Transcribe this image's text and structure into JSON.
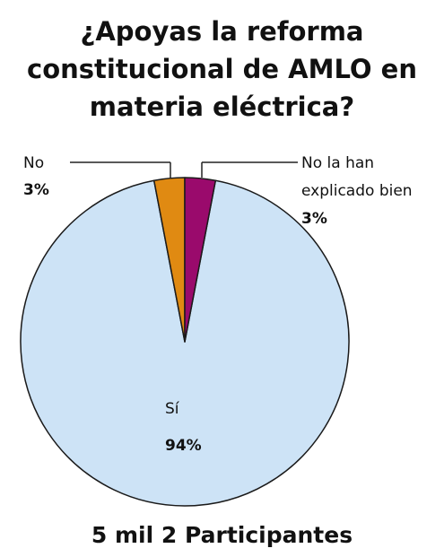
{
  "chart_data": {
    "type": "pie",
    "title_lines": [
      "¿Apoyas la reforma",
      "constitucional de AMLO en",
      "materia eléctrica?"
    ],
    "slices": [
      {
        "label": "Sí",
        "percent_label": "94%",
        "value": 94,
        "color": "#cde3f6"
      },
      {
        "label": "No",
        "percent_label": "3%",
        "value": 3,
        "color": "#e08a12"
      },
      {
        "label_lines": [
          "No la han",
          "explicado bien"
        ],
        "percent_label": "3%",
        "value": 3,
        "color": "#9a0a6c"
      }
    ],
    "outline_color": "#1a1a1a",
    "footer": "5 mil 2 Participantes"
  }
}
